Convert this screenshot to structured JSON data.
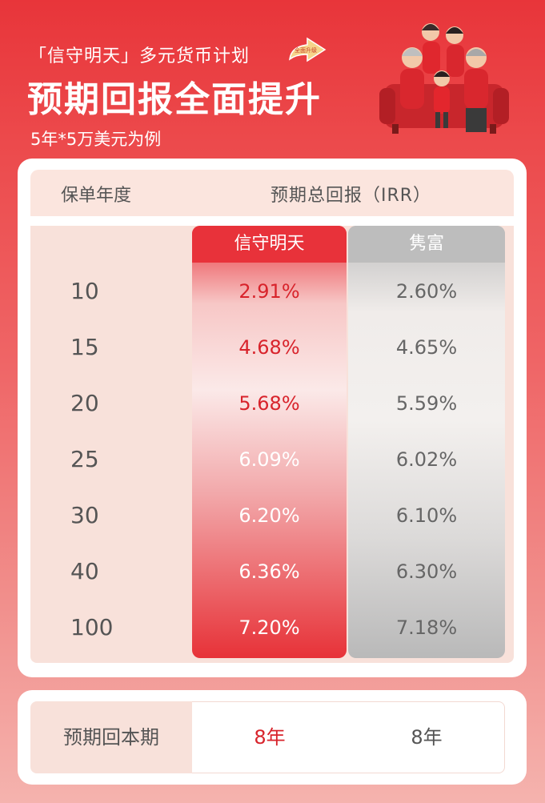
{
  "header": {
    "subtitle": "「信守明天」多元货币计划",
    "title": "预期回报全面提升",
    "note": "5年*5万美元为例",
    "badge_text": "全面升级"
  },
  "table": {
    "col_year_header": "保单年度",
    "col_irr_header": "预期总回报（IRR）",
    "plan_a_name": "信守明天",
    "plan_b_name": "隽富",
    "rows": [
      {
        "year": "10",
        "a": "2.91%",
        "b": "2.60%"
      },
      {
        "year": "15",
        "a": "4.68%",
        "b": "4.65%"
      },
      {
        "year": "20",
        "a": "5.68%",
        "b": "5.59%"
      },
      {
        "year": "25",
        "a": "6.09%",
        "b": "6.02%"
      },
      {
        "year": "30",
        "a": "6.20%",
        "b": "6.10%"
      },
      {
        "year": "40",
        "a": "6.36%",
        "b": "6.30%"
      },
      {
        "year": "100",
        "a": "7.20%",
        "b": "7.18%"
      }
    ]
  },
  "payback": {
    "label": "预期回本期",
    "a": "8年",
    "b": "8年"
  },
  "colors": {
    "brand_red": "#e8323a",
    "plan_b_gray": "#bdbdbd",
    "header_bg": "#fbe5de"
  }
}
